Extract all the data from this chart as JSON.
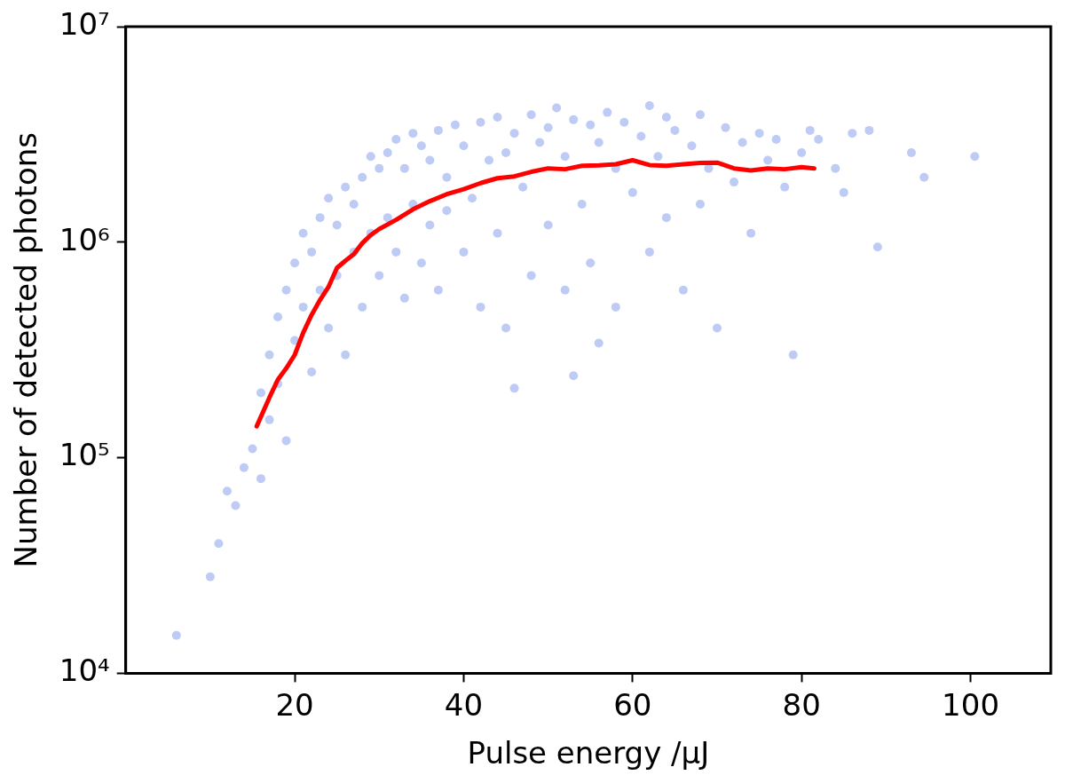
{
  "chart_data": {
    "type": "scatter",
    "xlabel": "Pulse energy /μJ",
    "ylabel": "Number of detected photons",
    "log": "y",
    "grid": false,
    "legend": false,
    "marker": "circle",
    "xlim": [
      0,
      109.5
    ],
    "xticks": [
      20,
      40,
      60,
      80,
      100
    ],
    "ylim": [
      10000,
      10000000
    ],
    "yticks": [
      {
        "value": 10000,
        "label": "10⁴"
      },
      {
        "value": 100000,
        "label": "10⁵"
      },
      {
        "value": 1000000,
        "label": "10⁶"
      },
      {
        "value": 10000000,
        "label": "10⁷"
      }
    ],
    "series": [
      {
        "color": "#4169e1",
        "x": [
          6,
          10,
          11,
          12,
          13,
          14,
          15,
          16,
          16,
          17,
          17,
          18,
          18,
          19,
          19,
          20,
          20,
          21,
          21,
          22,
          22,
          23,
          23,
          24,
          24,
          25,
          25,
          26,
          26,
          27,
          27,
          28,
          28,
          29,
          29,
          30,
          30,
          31,
          31,
          32,
          32,
          33,
          33,
          34,
          34,
          35,
          35,
          36,
          36,
          37,
          37,
          38,
          38,
          39,
          40,
          40,
          41,
          42,
          42,
          43,
          44,
          44,
          45,
          45,
          46,
          46,
          47,
          48,
          48,
          49,
          50,
          50,
          51,
          52,
          52,
          53,
          53,
          54,
          55,
          55,
          56,
          56,
          57,
          58,
          58,
          59,
          60,
          61,
          62,
          62,
          63,
          64,
          64,
          65,
          66,
          67,
          68,
          68,
          69,
          70,
          71,
          72,
          73,
          74,
          75,
          76,
          77,
          78,
          79,
          80,
          81,
          82,
          84,
          85,
          86,
          88,
          89,
          93,
          94.5,
          100.5
        ],
        "values": [
          15000,
          28000,
          40000,
          70000,
          60000,
          90000,
          110000,
          80000,
          200000,
          300000,
          150000,
          450000,
          220000,
          600000,
          120000,
          800000,
          350000,
          1100000,
          500000,
          900000,
          250000,
          1300000,
          600000,
          1600000,
          400000,
          1200000,
          700000,
          1800000,
          300000,
          1500000,
          900000,
          2000000,
          500000,
          2500000,
          1100000,
          2200000,
          700000,
          2600000,
          1300000,
          3000000,
          900000,
          2200000,
          550000,
          3200000,
          1500000,
          2800000,
          800000,
          2400000,
          1200000,
          3300000,
          600000,
          2000000,
          1400000,
          3500000,
          2800000,
          900000,
          1600000,
          3600000,
          500000,
          2400000,
          3800000,
          1100000,
          2600000,
          400000,
          3200000,
          210000,
          1800000,
          3900000,
          700000,
          2900000,
          3400000,
          1200000,
          4200000,
          2500000,
          600000,
          3700000,
          240000,
          1500000,
          3500000,
          800000,
          2900000,
          340000,
          4000000,
          2200000,
          500000,
          3600000,
          1700000,
          3100000,
          4300000,
          900000,
          2500000,
          3800000,
          1300000,
          3300000,
          600000,
          2800000,
          3900000,
          1500000,
          2200000,
          400000,
          3400000,
          1900000,
          2900000,
          1100000,
          3200000,
          2400000,
          3000000,
          1800000,
          300000,
          2600000,
          3300000,
          3000000,
          2200000,
          1700000,
          3200000,
          3300000,
          950000,
          2600000,
          2000000,
          2500000
        ]
      },
      {
        "type": "line",
        "color": "#ff0000",
        "marker": "none",
        "line_style": "solid",
        "x": [
          15.5,
          17,
          18,
          19,
          20,
          21,
          22,
          23,
          24,
          25,
          26,
          27,
          28,
          29,
          30,
          32,
          34,
          36,
          38,
          40,
          42,
          44,
          46,
          48,
          50,
          52,
          54,
          56,
          58,
          60,
          62,
          64,
          66,
          68,
          70,
          72,
          74,
          76,
          78,
          80,
          81.5
        ],
        "values": [
          140000,
          190000,
          230000,
          260000,
          300000,
          380000,
          460000,
          540000,
          620000,
          760000,
          820000,
          880000,
          990000,
          1080000,
          1150000,
          1270000,
          1420000,
          1550000,
          1670000,
          1760000,
          1880000,
          1980000,
          2020000,
          2120000,
          2200000,
          2180000,
          2260000,
          2270000,
          2300000,
          2400000,
          2280000,
          2260000,
          2300000,
          2330000,
          2340000,
          2200000,
          2150000,
          2200000,
          2180000,
          2230000,
          2200000
        ]
      }
    ]
  }
}
